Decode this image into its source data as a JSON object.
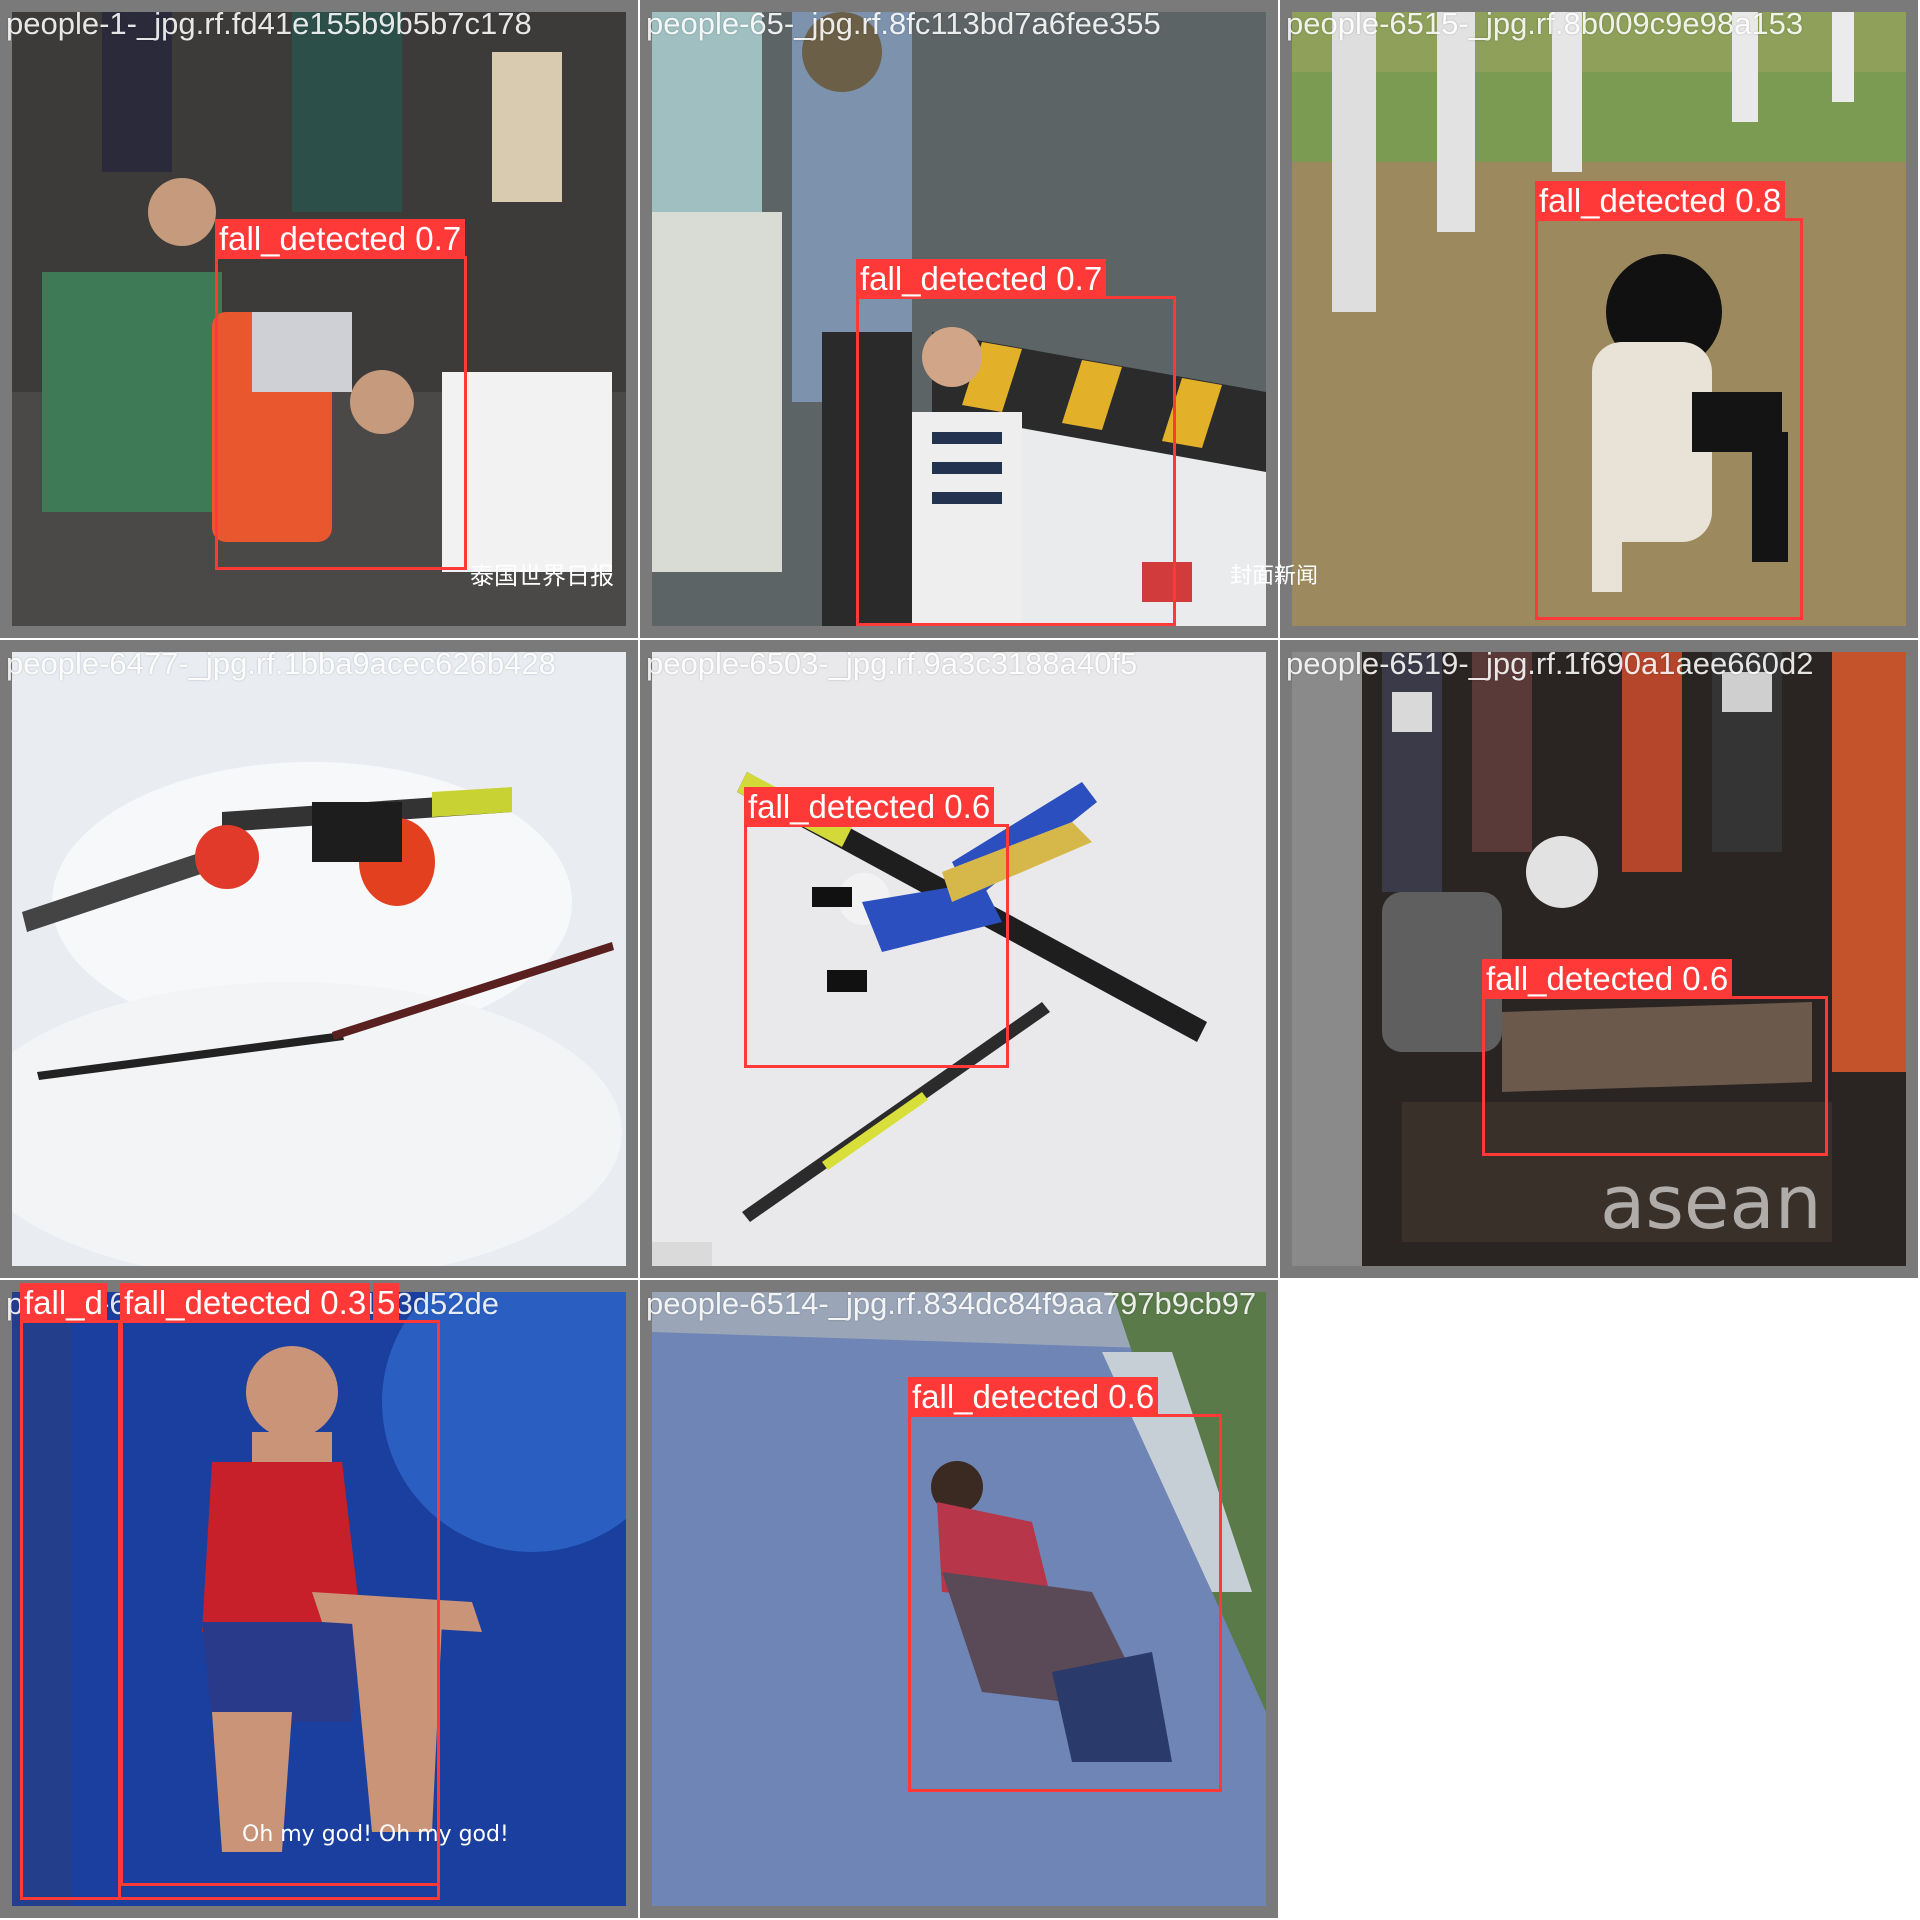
{
  "colors": {
    "box": "#ff3838",
    "label_text": "#ffffff",
    "tile_frame": "#7a7a7a"
  },
  "tiles": [
    {
      "filename": "people-1-_jpg.rf.fd41e155b9b5b7c178",
      "detections": [
        {
          "label": "fall_detected 0.7"
        }
      ],
      "watermark": "泰国世界日报"
    },
    {
      "filename": "people-65-_jpg.rf.8fc113bd7a6fee355",
      "detections": [
        {
          "label": "fall_detected 0.7"
        }
      ],
      "watermark": "封面新闻"
    },
    {
      "filename": "people-6515-_jpg.rf.8b009c9e98a153",
      "detections": [
        {
          "label": "fall_detected 0.8"
        }
      ]
    },
    {
      "filename": "people-6477-_jpg.rf.1bba9acec626b428",
      "detections": []
    },
    {
      "filename": "people-6503-_jpg.rf.9a3c3188a40f5",
      "detections": [
        {
          "label": "fall_detected 0.6"
        }
      ]
    },
    {
      "filename": "people-6519-_jpg.rf.1f690a1aee660d2",
      "detections": [
        {
          "label": "fall_detected 0.6"
        }
      ],
      "watermark": "asean"
    },
    {
      "filename": "people-6_-_jpg.rf.7529af2173d52de",
      "detections": [
        {
          "label": "fall_d"
        },
        {
          "label": "fall_detected 0.3"
        },
        {
          "label": "5"
        }
      ],
      "watermark": "Oh my god! Oh my god!"
    },
    {
      "filename": "people-6514-_jpg.rf.834dc84f9aa797b9cb97",
      "detections": [
        {
          "label": "fall_detected 0.6"
        }
      ]
    }
  ]
}
